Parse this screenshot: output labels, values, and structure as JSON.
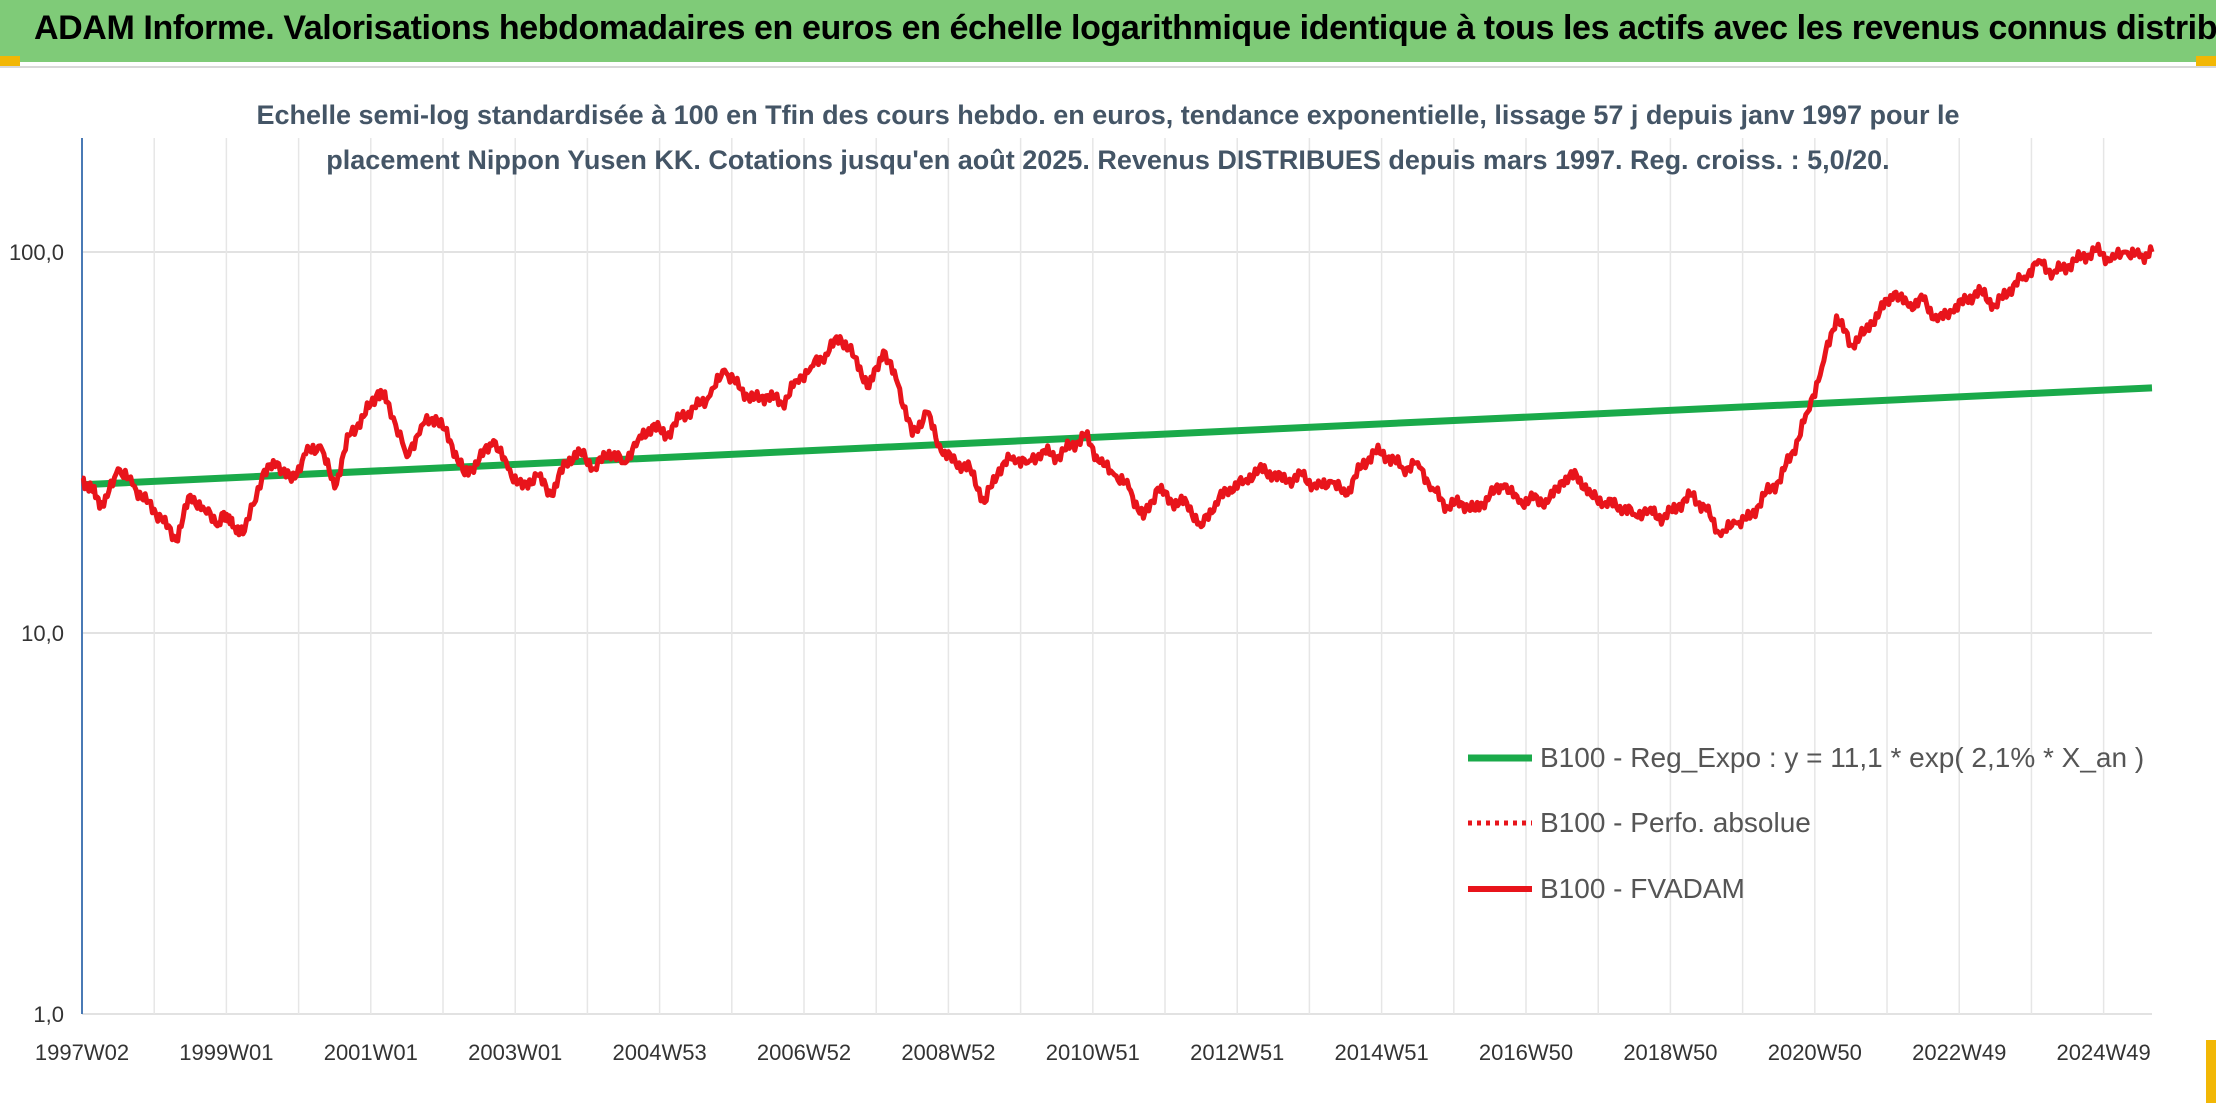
{
  "header": {
    "title": "ADAM Informe. Valorisations hebdomadaires en euros en échelle logarithmique identique à tous les actifs avec les revenus connus distribués"
  },
  "colors": {
    "header_bg": "#7fcb78",
    "fvadam": "#e8141b",
    "perfo": "#e8141b",
    "reg": "#1aaa4a",
    "grid": "#d9d9d9"
  },
  "chart_data": {
    "type": "line",
    "title_lines": [
      "Echelle semi-log standardisée à 100 en Tfin des cours hebdo. en euros, tendance exponentielle, lissage 57 j depuis janv 1997 pour le",
      "placement Nippon Yusen KK. Cotations jusqu'en août 2025. Revenus DISTRIBUES depuis mars 1997. Reg. croiss. : 5,0/20."
    ],
    "y_scale": "log",
    "ylim": [
      1,
      200
    ],
    "y_ticks": [
      {
        "value": 1,
        "label": "1,0"
      },
      {
        "value": 10,
        "label": "10,0"
      },
      {
        "value": 100,
        "label": "100,0"
      }
    ],
    "xlim": [
      1997.0,
      2025.67
    ],
    "x_ticks": [
      {
        "value": 1997.0,
        "label": "1997W02"
      },
      {
        "value": 1999.0,
        "label": "1999W01"
      },
      {
        "value": 2001.0,
        "label": "2001W01"
      },
      {
        "value": 2003.0,
        "label": "2003W01"
      },
      {
        "value": 2005.0,
        "label": "2004W53"
      },
      {
        "value": 2007.0,
        "label": "2006W52"
      },
      {
        "value": 2009.0,
        "label": "2008W52"
      },
      {
        "value": 2011.0,
        "label": "2010W51"
      },
      {
        "value": 2013.0,
        "label": "2012W51"
      },
      {
        "value": 2015.0,
        "label": "2014W51"
      },
      {
        "value": 2017.0,
        "label": "2016W50"
      },
      {
        "value": 2019.0,
        "label": "2018W50"
      },
      {
        "value": 2021.0,
        "label": "2020W50"
      },
      {
        "value": 2023.0,
        "label": "2022W49"
      },
      {
        "value": 2025.0,
        "label": "2024W49"
      }
    ],
    "legend_position": "bottom-right",
    "series": [
      {
        "name": "B100 - Reg_Expo : y = 11,1 * exp( 2,1% *  X_an )",
        "style": "solid-thick",
        "x": [
          1997.0,
          2025.67
        ],
        "y": [
          24.5,
          44.0
        ]
      },
      {
        "name": "B100 - Perfo. absolue",
        "style": "dotted",
        "x": [],
        "y": []
      },
      {
        "name": "B100 - FVADAM",
        "style": "solid",
        "x": [
          1997.0,
          1997.15,
          1997.3,
          1997.5,
          1997.7,
          1997.9,
          1998.1,
          1998.3,
          1998.5,
          1998.7,
          1998.9,
          1999.0,
          1999.1,
          1999.25,
          1999.5,
          1999.7,
          1999.9,
          2000.1,
          2000.3,
          2000.5,
          2000.7,
          2000.9,
          2001.1,
          2001.25,
          2001.5,
          2001.7,
          2001.9,
          2002.1,
          2002.3,
          2002.5,
          2002.7,
          2002.9,
          2003.1,
          2003.3,
          2003.5,
          2003.7,
          2003.9,
          2004.1,
          2004.3,
          2004.5,
          2004.7,
          2004.9,
          2005.1,
          2005.3,
          2005.5,
          2005.7,
          2005.9,
          2006.1,
          2006.3,
          2006.5,
          2006.7,
          2006.9,
          2007.1,
          2007.3,
          2007.5,
          2007.7,
          2007.9,
          2008.1,
          2008.3,
          2008.5,
          2008.7,
          2008.9,
          2009.1,
          2009.3,
          2009.5,
          2009.7,
          2009.9,
          2010.1,
          2010.3,
          2010.5,
          2010.7,
          2010.9,
          2011.1,
          2011.3,
          2011.5,
          2011.7,
          2011.9,
          2012.1,
          2012.3,
          2012.5,
          2012.7,
          2012.9,
          2013.1,
          2013.3,
          2013.5,
          2013.7,
          2013.9,
          2014.1,
          2014.3,
          2014.5,
          2014.7,
          2014.9,
          2015.1,
          2015.3,
          2015.5,
          2015.7,
          2015.9,
          2016.1,
          2016.3,
          2016.5,
          2016.7,
          2016.9,
          2017.1,
          2017.3,
          2017.5,
          2017.7,
          2017.9,
          2018.1,
          2018.3,
          2018.5,
          2018.7,
          2018.9,
          2019.1,
          2019.3,
          2019.5,
          2019.7,
          2019.9,
          2020.1,
          2020.3,
          2020.5,
          2020.7,
          2020.9,
          2021.1,
          2021.3,
          2021.5,
          2021.7,
          2021.9,
          2022.1,
          2022.3,
          2022.5,
          2022.7,
          2022.9,
          2023.1,
          2023.3,
          2023.5,
          2023.7,
          2023.9,
          2024.1,
          2024.3,
          2024.5,
          2024.7,
          2024.9,
          2025.1,
          2025.3,
          2025.5,
          2025.67
        ],
        "y": [
          25.5,
          23.5,
          21.5,
          27.0,
          24.5,
          22.0,
          20.0,
          17.5,
          23.0,
          21.0,
          19.5,
          20.5,
          19.0,
          18.5,
          26.0,
          28.0,
          25.0,
          29.5,
          31.0,
          24.0,
          33.0,
          37.0,
          43.0,
          40.0,
          29.0,
          35.0,
          37.0,
          32.0,
          26.0,
          28.5,
          32.0,
          27.0,
          24.0,
          26.0,
          23.0,
          28.0,
          30.0,
          27.0,
          30.0,
          28.0,
          32.0,
          35.0,
          33.0,
          37.0,
          39.0,
          42.0,
          49.0,
          44.0,
          41.0,
          42.0,
          40.0,
          46.0,
          50.0,
          54.0,
          60.0,
          53.0,
          44.0,
          55.0,
          45.0,
          33.0,
          38.0,
          30.0,
          28.0,
          27.0,
          22.0,
          27.0,
          29.0,
          28.0,
          30.0,
          29.0,
          31.0,
          33.0,
          28.0,
          26.0,
          24.0,
          20.0,
          24.0,
          22.0,
          22.0,
          19.0,
          22.0,
          24.0,
          25.0,
          27.0,
          26.0,
          25.0,
          26.0,
          24.0,
          25.0,
          23.0,
          27.0,
          30.0,
          29.0,
          27.0,
          28.0,
          24.0,
          21.5,
          22.0,
          21.0,
          23.0,
          24.5,
          22.0,
          22.5,
          22.0,
          25.0,
          26.0,
          23.0,
          22.0,
          21.5,
          20.5,
          21.0,
          20.0,
          21.5,
          23.0,
          21.0,
          18.0,
          19.5,
          20.0,
          23.0,
          25.0,
          30.0,
          38.0,
          50.0,
          68.0,
          57.0,
          62.0,
          70.0,
          78.0,
          72.0,
          75.0,
          66.0,
          70.0,
          75.0,
          79.0,
          72.0,
          80.0,
          86.0,
          95.0,
          88.0,
          92.0,
          97.0,
          101.0,
          95.0,
          100.0,
          97.0,
          100.0
        ]
      }
    ]
  },
  "legend": {
    "reg_label": "B100 - Reg_Expo : y = 11,1 * exp( 2,1% *  X_an )",
    "perfo_label": "B100 - Perfo. absolue",
    "fvadam_label": "B100 - FVADAM"
  }
}
